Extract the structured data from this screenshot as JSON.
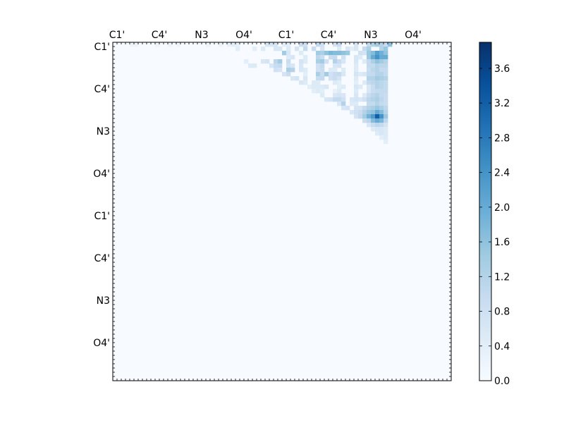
{
  "chart_data": {
    "type": "heatmap",
    "title": "",
    "xlabel": "",
    "ylabel": "",
    "grid_size": [
      80,
      80
    ],
    "x_tick_labels": [
      "C1'",
      "C4'",
      "N3",
      "O4'",
      "C1'",
      "C4'",
      "N3",
      "O4'"
    ],
    "y_tick_labels": [
      "C1'",
      "C4'",
      "N3",
      "O4'",
      "C1'",
      "C4'",
      "N3",
      "O4'"
    ],
    "colormap": "Blues",
    "colorbar": {
      "range": [
        0.0,
        3.9
      ],
      "ticks": [
        "0.0",
        "0.4",
        "0.8",
        "1.2",
        "1.6",
        "2.0",
        "2.4",
        "2.8",
        "3.2",
        "3.6"
      ],
      "colors": [
        "#f7fbff",
        "#deebf7",
        "#c6dbef",
        "#9ecae1",
        "#6baed6",
        "#4292c6",
        "#2171b5",
        "#08519c",
        "#08306b"
      ]
    },
    "cells": [
      [
        0,
        4,
        0.2
      ],
      [
        0,
        5,
        0.2
      ],
      [
        0,
        10,
        0.2
      ],
      [
        0,
        13,
        0.2
      ],
      [
        0,
        15,
        0.2
      ],
      [
        0,
        22,
        0.2
      ],
      [
        0,
        25,
        0.2
      ],
      [
        0,
        27,
        0.3
      ],
      [
        0,
        28,
        0.4
      ],
      [
        0,
        29,
        0.3
      ],
      [
        0,
        36,
        0.6
      ],
      [
        0,
        37,
        0.6
      ],
      [
        0,
        38,
        0.6
      ],
      [
        0,
        40,
        0.4
      ],
      [
        0,
        41,
        0.4
      ],
      [
        0,
        44,
        0.9
      ],
      [
        0,
        45,
        0.8
      ],
      [
        0,
        48,
        1.0
      ],
      [
        0,
        49,
        0.8
      ],
      [
        0,
        52,
        0.7
      ],
      [
        0,
        53,
        0.9
      ],
      [
        0,
        57,
        0.6
      ],
      [
        0,
        60,
        1.0
      ],
      [
        0,
        61,
        1.2
      ],
      [
        0,
        62,
        1.4
      ],
      [
        0,
        63,
        1.2
      ],
      [
        0,
        64,
        0.9
      ],
      [
        0,
        65,
        1.6
      ],
      [
        1,
        29,
        0.4
      ],
      [
        1,
        33,
        0.4
      ],
      [
        1,
        35,
        0.5
      ],
      [
        1,
        38,
        0.6
      ],
      [
        1,
        39,
        0.6
      ],
      [
        1,
        41,
        0.5
      ],
      [
        1,
        43,
        0.7
      ],
      [
        1,
        45,
        1.0
      ],
      [
        1,
        47,
        0.9
      ],
      [
        1,
        49,
        0.7
      ],
      [
        1,
        53,
        0.5
      ],
      [
        1,
        55,
        0.6
      ],
      [
        1,
        56,
        0.4
      ],
      [
        1,
        57,
        0.6
      ],
      [
        1,
        59,
        1.0
      ],
      [
        1,
        60,
        1.3
      ],
      [
        1,
        63,
        1.2
      ],
      [
        1,
        64,
        1.5
      ],
      [
        2,
        40,
        1.4
      ],
      [
        2,
        41,
        0.6
      ],
      [
        2,
        44,
        0.5
      ],
      [
        2,
        48,
        1.4
      ],
      [
        2,
        49,
        1.3
      ],
      [
        2,
        50,
        1.6
      ],
      [
        2,
        51,
        1.8
      ],
      [
        2,
        52,
        1.7
      ],
      [
        2,
        53,
        1.7
      ],
      [
        2,
        54,
        1.6
      ],
      [
        2,
        55,
        1.5
      ],
      [
        2,
        58,
        0.8
      ],
      [
        2,
        59,
        0.7
      ],
      [
        2,
        60,
        1.5
      ],
      [
        2,
        61,
        1.7
      ],
      [
        2,
        62,
        2.2
      ],
      [
        2,
        63,
        1.9
      ],
      [
        2,
        64,
        1.6
      ],
      [
        3,
        41,
        0.5
      ],
      [
        3,
        42,
        0.6
      ],
      [
        3,
        45,
        0.5
      ],
      [
        3,
        48,
        1.1
      ],
      [
        3,
        49,
        0.9
      ],
      [
        3,
        51,
        0.9
      ],
      [
        3,
        52,
        1.0
      ],
      [
        3,
        54,
        0.8
      ],
      [
        3,
        57,
        0.6
      ],
      [
        3,
        58,
        0.5
      ],
      [
        3,
        60,
        1.5
      ],
      [
        3,
        61,
        2.0
      ],
      [
        3,
        62,
        2.4
      ],
      [
        3,
        63,
        2.0
      ],
      [
        3,
        64,
        2.0
      ],
      [
        4,
        31,
        0.4
      ],
      [
        4,
        35,
        0.6
      ],
      [
        4,
        36,
        0.7
      ],
      [
        4,
        38,
        1.1
      ],
      [
        4,
        39,
        1.4
      ],
      [
        4,
        41,
        0.9
      ],
      [
        4,
        44,
        0.7
      ],
      [
        4,
        45,
        0.5
      ],
      [
        4,
        48,
        1.3
      ],
      [
        4,
        49,
        1.4
      ],
      [
        4,
        50,
        0.8
      ],
      [
        4,
        52,
        1.2
      ],
      [
        4,
        53,
        0.9
      ],
      [
        4,
        54,
        0.6
      ],
      [
        4,
        57,
        0.6
      ],
      [
        4,
        59,
        0.5
      ],
      [
        4,
        60,
        1.0
      ],
      [
        4,
        61,
        1.3
      ],
      [
        4,
        62,
        1.6
      ],
      [
        4,
        63,
        1.4
      ],
      [
        4,
        64,
        1.2
      ],
      [
        5,
        32,
        0.5
      ],
      [
        5,
        33,
        0.5
      ],
      [
        5,
        37,
        0.6
      ],
      [
        5,
        38,
        0.9
      ],
      [
        5,
        39,
        1.0
      ],
      [
        5,
        41,
        0.8
      ],
      [
        5,
        42,
        0.6
      ],
      [
        5,
        44,
        0.6
      ],
      [
        5,
        48,
        0.8
      ],
      [
        5,
        49,
        1.0
      ],
      [
        5,
        52,
        0.6
      ],
      [
        5,
        53,
        0.7
      ],
      [
        5,
        57,
        0.5
      ],
      [
        5,
        60,
        1.0
      ],
      [
        5,
        61,
        1.0
      ],
      [
        5,
        62,
        1.2
      ],
      [
        5,
        63,
        1.1
      ],
      [
        5,
        64,
        1.1
      ],
      [
        6,
        38,
        0.8
      ],
      [
        6,
        39,
        0.7
      ],
      [
        6,
        41,
        1.3
      ],
      [
        6,
        42,
        1.2
      ],
      [
        6,
        44,
        0.6
      ],
      [
        6,
        45,
        0.5
      ],
      [
        6,
        48,
        0.8
      ],
      [
        6,
        49,
        0.9
      ],
      [
        6,
        51,
        0.5
      ],
      [
        6,
        52,
        0.5
      ],
      [
        6,
        54,
        0.5
      ],
      [
        6,
        57,
        0.5
      ],
      [
        6,
        60,
        0.9
      ],
      [
        6,
        61,
        1.1
      ],
      [
        6,
        62,
        1.2
      ],
      [
        6,
        63,
        1.0
      ],
      [
        6,
        64,
        1.0
      ],
      [
        7,
        40,
        0.7
      ],
      [
        7,
        41,
        0.9
      ],
      [
        7,
        45,
        0.4
      ],
      [
        7,
        48,
        1.3
      ],
      [
        7,
        49,
        0.9
      ],
      [
        7,
        50,
        1.4
      ],
      [
        7,
        51,
        0.8
      ],
      [
        7,
        52,
        0.9
      ],
      [
        7,
        53,
        1.0
      ],
      [
        7,
        54,
        0.6
      ],
      [
        7,
        57,
        0.7
      ],
      [
        7,
        58,
        0.5
      ],
      [
        7,
        59,
        0.6
      ],
      [
        7,
        60,
        1.0
      ],
      [
        7,
        61,
        1.0
      ],
      [
        7,
        62,
        1.2
      ],
      [
        7,
        63,
        1.2
      ],
      [
        7,
        64,
        1.0
      ],
      [
        8,
        42,
        0.6
      ],
      [
        8,
        43,
        0.7
      ],
      [
        8,
        45,
        0.6
      ],
      [
        8,
        48,
        0.9
      ],
      [
        8,
        49,
        1.0
      ],
      [
        8,
        51,
        0.8
      ],
      [
        8,
        52,
        0.9
      ],
      [
        8,
        53,
        0.7
      ],
      [
        8,
        57,
        0.5
      ],
      [
        8,
        60,
        1.2
      ],
      [
        8,
        61,
        1.2
      ],
      [
        8,
        62,
        1.4
      ],
      [
        8,
        63,
        1.3
      ],
      [
        8,
        64,
        1.2
      ],
      [
        9,
        44,
        0.6
      ],
      [
        9,
        45,
        0.5
      ],
      [
        9,
        47,
        0.5
      ],
      [
        9,
        48,
        0.5
      ],
      [
        9,
        52,
        0.5
      ],
      [
        9,
        53,
        0.4
      ],
      [
        9,
        57,
        0.4
      ],
      [
        9,
        59,
        0.5
      ],
      [
        9,
        60,
        1.0
      ],
      [
        9,
        61,
        1.1
      ],
      [
        9,
        62,
        1.2
      ],
      [
        9,
        63,
        1.1
      ],
      [
        9,
        64,
        1.0
      ],
      [
        10,
        46,
        0.4
      ],
      [
        10,
        47,
        0.5
      ],
      [
        10,
        48,
        0.5
      ],
      [
        10,
        49,
        0.5
      ],
      [
        10,
        50,
        0.6
      ],
      [
        10,
        53,
        0.4
      ],
      [
        10,
        54,
        0.5
      ],
      [
        10,
        57,
        0.6
      ],
      [
        10,
        58,
        0.5
      ],
      [
        10,
        60,
        0.6
      ],
      [
        10,
        61,
        0.9
      ],
      [
        10,
        62,
        1.2
      ],
      [
        10,
        63,
        1.1
      ],
      [
        10,
        64,
        1.0
      ],
      [
        11,
        47,
        0.4
      ],
      [
        11,
        48,
        0.5
      ],
      [
        11,
        49,
        0.4
      ],
      [
        11,
        52,
        0.3
      ],
      [
        11,
        53,
        0.5
      ],
      [
        11,
        57,
        0.5
      ],
      [
        11,
        60,
        0.6
      ],
      [
        11,
        61,
        0.9
      ],
      [
        11,
        62,
        1.0
      ],
      [
        11,
        63,
        1.0
      ],
      [
        11,
        64,
        1.0
      ],
      [
        12,
        49,
        0.5
      ],
      [
        12,
        52,
        0.6
      ],
      [
        12,
        53,
        0.7
      ],
      [
        12,
        54,
        0.6
      ],
      [
        12,
        57,
        0.6
      ],
      [
        12,
        59,
        0.5
      ],
      [
        12,
        60,
        0.9
      ],
      [
        12,
        61,
        1.1
      ],
      [
        12,
        62,
        1.2
      ],
      [
        12,
        63,
        1.0
      ],
      [
        12,
        64,
        0.9
      ],
      [
        13,
        50,
        0.6
      ],
      [
        13,
        51,
        0.7
      ],
      [
        13,
        52,
        1.0
      ],
      [
        13,
        53,
        1.0
      ],
      [
        13,
        54,
        0.8
      ],
      [
        13,
        56,
        0.6
      ],
      [
        13,
        57,
        0.7
      ],
      [
        13,
        58,
        0.6
      ],
      [
        13,
        59,
        0.8
      ],
      [
        13,
        60,
        1.1
      ],
      [
        13,
        61,
        1.2
      ],
      [
        13,
        62,
        1.3
      ],
      [
        13,
        63,
        1.1
      ],
      [
        13,
        64,
        0.9
      ],
      [
        14,
        53,
        0.6
      ],
      [
        14,
        54,
        1.2
      ],
      [
        14,
        56,
        0.5
      ],
      [
        14,
        57,
        0.5
      ],
      [
        14,
        60,
        1.0
      ],
      [
        14,
        61,
        1.0
      ],
      [
        14,
        62,
        1.2
      ],
      [
        14,
        63,
        1.0
      ],
      [
        14,
        64,
        0.9
      ],
      [
        15,
        54,
        0.6
      ],
      [
        15,
        55,
        0.7
      ],
      [
        15,
        57,
        0.7
      ],
      [
        15,
        58,
        0.7
      ],
      [
        15,
        59,
        1.0
      ],
      [
        15,
        60,
        1.2
      ],
      [
        15,
        61,
        1.3
      ],
      [
        15,
        62,
        1.5
      ],
      [
        15,
        63,
        1.3
      ],
      [
        15,
        64,
        1.1
      ],
      [
        16,
        56,
        0.6
      ],
      [
        16,
        57,
        0.8
      ],
      [
        16,
        58,
        0.9
      ],
      [
        16,
        59,
        1.2
      ],
      [
        16,
        60,
        1.5
      ],
      [
        16,
        61,
        1.6
      ],
      [
        16,
        62,
        2.0
      ],
      [
        16,
        63,
        1.7
      ],
      [
        16,
        64,
        1.2
      ],
      [
        17,
        57,
        0.7
      ],
      [
        17,
        58,
        1.0
      ],
      [
        17,
        59,
        1.4
      ],
      [
        17,
        60,
        1.9
      ],
      [
        17,
        61,
        2.3
      ],
      [
        17,
        62,
        3.2
      ],
      [
        17,
        63,
        2.4
      ],
      [
        17,
        64,
        1.5
      ],
      [
        18,
        59,
        0.9
      ],
      [
        18,
        60,
        1.1
      ],
      [
        18,
        61,
        1.7
      ],
      [
        18,
        62,
        2.0
      ],
      [
        18,
        63,
        1.8
      ],
      [
        18,
        64,
        1.1
      ],
      [
        19,
        60,
        0.6
      ],
      [
        19,
        61,
        0.9
      ],
      [
        19,
        62,
        1.1
      ],
      [
        19,
        63,
        1.0
      ],
      [
        19,
        64,
        0.7
      ],
      [
        20,
        61,
        0.5
      ],
      [
        20,
        62,
        0.6
      ],
      [
        20,
        63,
        0.6
      ],
      [
        20,
        64,
        0.5
      ],
      [
        21,
        62,
        0.5
      ],
      [
        21,
        63,
        0.6
      ],
      [
        21,
        64,
        0.5
      ],
      [
        22,
        63,
        0.4
      ],
      [
        22,
        64,
        0.5
      ],
      [
        23,
        64,
        0.4
      ]
    ],
    "cell_notes": ""
  }
}
